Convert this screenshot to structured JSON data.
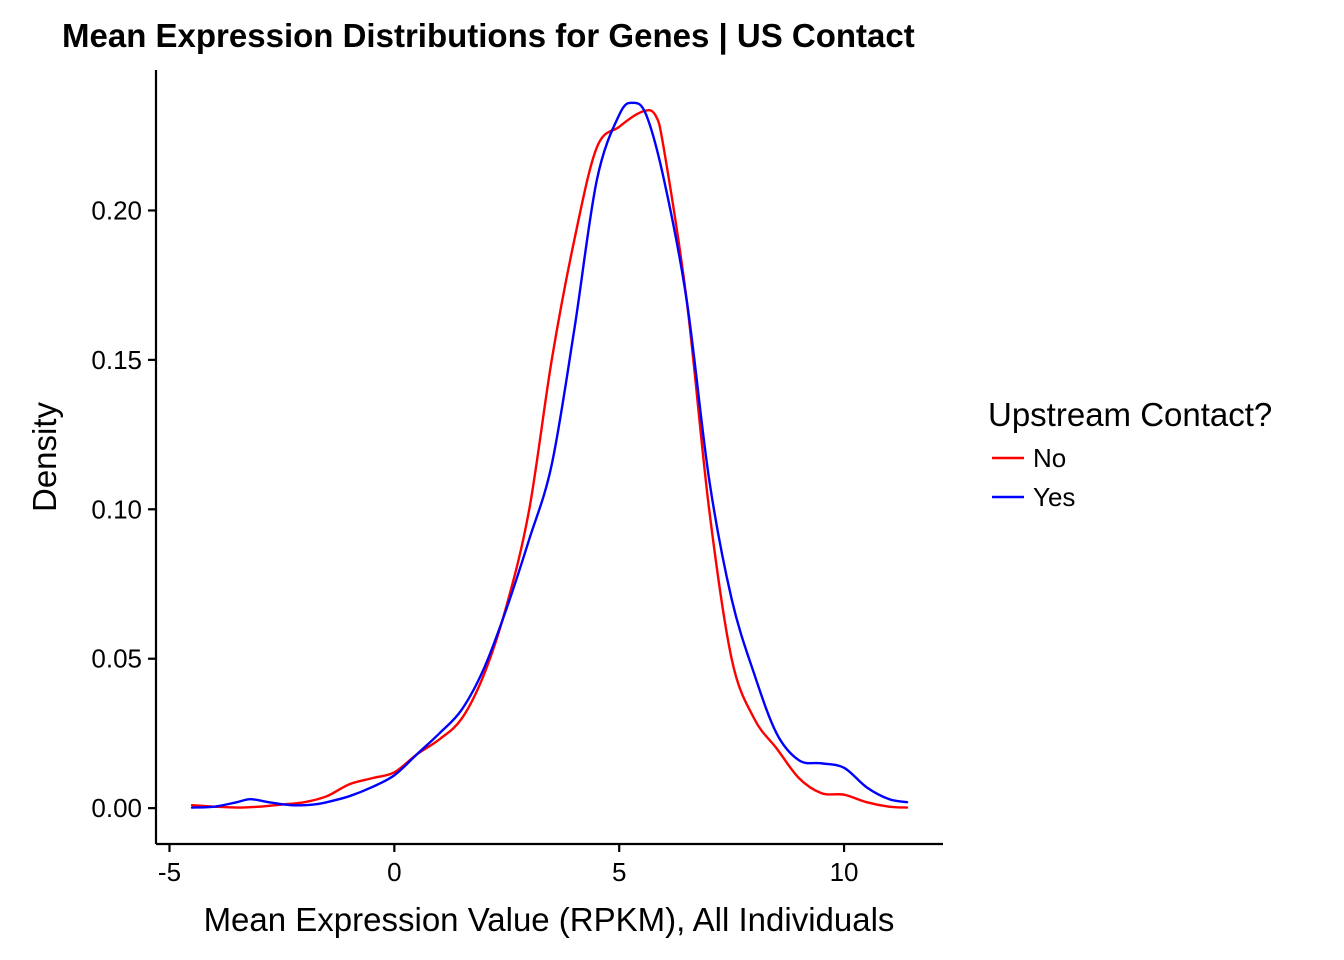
{
  "chart_data": {
    "type": "line",
    "title": "Mean Expression Distributions for Genes | US Contact",
    "xlabel": "Mean Expression Value (RPKM), All Individuals",
    "ylabel": "Density",
    "xlim": [
      -5.3,
      12.2
    ],
    "ylim": [
      -0.012,
      0.247
    ],
    "x_ticks": [
      -5,
      0,
      5,
      10
    ],
    "x_tick_labels": [
      "-5",
      "0",
      "5",
      "10"
    ],
    "y_ticks": [
      0.0,
      0.05,
      0.1,
      0.15,
      0.2
    ],
    "y_tick_labels": [
      "0.00",
      "0.05",
      "0.10",
      "0.15",
      "0.20"
    ],
    "grid": false,
    "legend": {
      "title": "Upstream Contact?",
      "position": "right"
    },
    "series": [
      {
        "name": "No",
        "color": "#ff0000",
        "points": [
          [
            -4.5,
            0.001
          ],
          [
            -4.0,
            0.0005
          ],
          [
            -3.5,
            0.0002
          ],
          [
            -3.0,
            0.0005
          ],
          [
            -2.5,
            0.0012
          ],
          [
            -2.0,
            0.002
          ],
          [
            -1.5,
            0.004
          ],
          [
            -1.0,
            0.008
          ],
          [
            -0.5,
            0.01
          ],
          [
            0.0,
            0.012
          ],
          [
            0.5,
            0.018
          ],
          [
            1.0,
            0.023
          ],
          [
            1.5,
            0.03
          ],
          [
            2.0,
            0.045
          ],
          [
            2.5,
            0.068
          ],
          [
            3.0,
            0.1
          ],
          [
            3.5,
            0.15
          ],
          [
            4.0,
            0.19
          ],
          [
            4.5,
            0.221
          ],
          [
            5.0,
            0.228
          ],
          [
            5.5,
            0.233
          ],
          [
            5.8,
            0.232
          ],
          [
            6.0,
            0.22
          ],
          [
            6.5,
            0.17
          ],
          [
            7.0,
            0.1
          ],
          [
            7.5,
            0.05
          ],
          [
            8.0,
            0.03
          ],
          [
            8.5,
            0.02
          ],
          [
            9.0,
            0.01
          ],
          [
            9.5,
            0.005
          ],
          [
            10.0,
            0.0045
          ],
          [
            10.5,
            0.002
          ],
          [
            11.0,
            0.0005
          ],
          [
            11.4,
            0.0002
          ]
        ]
      },
      {
        "name": "Yes",
        "color": "#0000ff",
        "points": [
          [
            -4.5,
            0.0002
          ],
          [
            -4.0,
            0.0005
          ],
          [
            -3.5,
            0.002
          ],
          [
            -3.2,
            0.003
          ],
          [
            -2.8,
            0.002
          ],
          [
            -2.3,
            0.001
          ],
          [
            -1.8,
            0.0012
          ],
          [
            -1.5,
            0.002
          ],
          [
            -1.0,
            0.004
          ],
          [
            -0.5,
            0.007
          ],
          [
            0.0,
            0.011
          ],
          [
            0.5,
            0.018
          ],
          [
            1.0,
            0.025
          ],
          [
            1.5,
            0.033
          ],
          [
            2.0,
            0.047
          ],
          [
            2.5,
            0.067
          ],
          [
            3.0,
            0.09
          ],
          [
            3.5,
            0.115
          ],
          [
            4.0,
            0.16
          ],
          [
            4.5,
            0.21
          ],
          [
            5.0,
            0.232
          ],
          [
            5.3,
            0.236
          ],
          [
            5.6,
            0.232
          ],
          [
            6.0,
            0.21
          ],
          [
            6.5,
            0.17
          ],
          [
            7.0,
            0.11
          ],
          [
            7.5,
            0.07
          ],
          [
            8.0,
            0.045
          ],
          [
            8.5,
            0.025
          ],
          [
            9.0,
            0.016
          ],
          [
            9.5,
            0.015
          ],
          [
            10.0,
            0.0135
          ],
          [
            10.5,
            0.007
          ],
          [
            11.0,
            0.003
          ],
          [
            11.4,
            0.002
          ]
        ]
      }
    ]
  }
}
